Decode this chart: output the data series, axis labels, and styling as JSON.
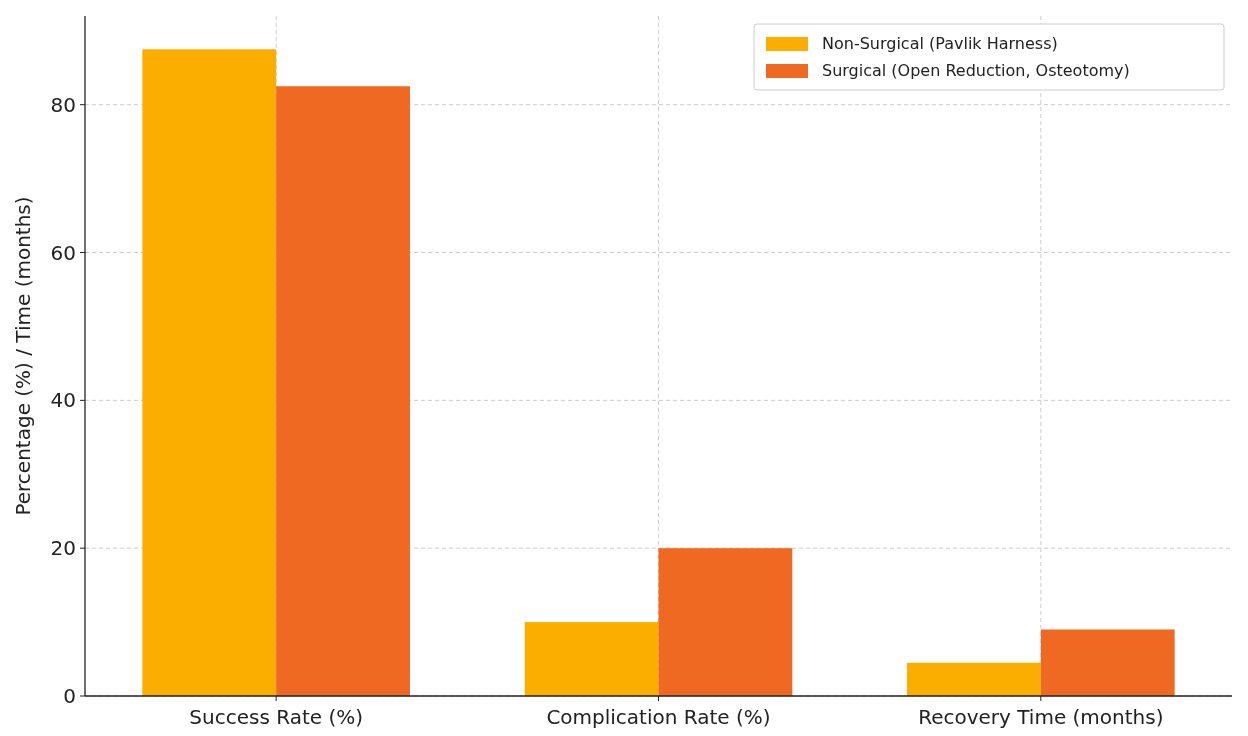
{
  "chart_data": {
    "type": "bar",
    "ylabel": "Percentage (%) / Time (months)",
    "categories": [
      "Success Rate (%)",
      "Complication Rate (%)",
      "Recovery Time (months)"
    ],
    "series": [
      {
        "name": "Non-Surgical (Pavlik Harness)",
        "color": "#fbae00",
        "values": [
          87.5,
          10,
          4.5
        ]
      },
      {
        "name": "Surgical (Open Reduction, Osteotomy)",
        "color": "#f06922",
        "values": [
          82.5,
          20,
          9
        ]
      }
    ],
    "ylim": [
      0,
      92
    ],
    "yticks": [
      0,
      20,
      40,
      60,
      80
    ],
    "grid": true,
    "legend": "top right"
  }
}
